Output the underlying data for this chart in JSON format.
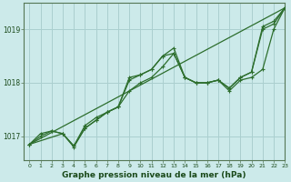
{
  "title": "Graphe pression niveau de la mer (hPa)",
  "bg_color": "#cceaea",
  "grid_color": "#aacfcf",
  "line_color": "#2d6e2d",
  "xlim": [
    -0.5,
    23
  ],
  "ylim": [
    1016.55,
    1019.5
  ],
  "yticks": [
    1017,
    1018,
    1019
  ],
  "xticks": [
    0,
    1,
    2,
    3,
    4,
    5,
    6,
    7,
    8,
    9,
    10,
    11,
    12,
    13,
    14,
    15,
    16,
    17,
    18,
    19,
    20,
    21,
    22,
    23
  ],
  "line1_x": [
    0,
    1,
    2,
    3,
    4,
    5,
    6,
    7,
    8,
    9,
    10,
    11,
    12,
    13,
    14,
    15,
    16,
    17,
    18,
    19,
    20,
    21,
    22,
    23
  ],
  "line1_y": [
    1016.85,
    1017.0,
    1017.1,
    1017.05,
    1016.8,
    1017.15,
    1017.3,
    1017.45,
    1017.55,
    1018.05,
    1018.15,
    1018.25,
    1018.5,
    1018.65,
    1018.1,
    1018.0,
    1018.0,
    1018.05,
    1017.9,
    1018.1,
    1018.2,
    1019.05,
    1019.15,
    1019.4
  ],
  "line2_x": [
    0,
    1,
    2,
    3,
    4,
    5,
    6,
    7,
    8,
    9,
    10,
    11,
    12,
    13,
    14,
    15,
    16,
    17,
    18,
    19,
    20,
    21,
    22,
    23
  ],
  "line2_y": [
    1016.85,
    1017.05,
    1017.1,
    1017.05,
    1016.82,
    1017.2,
    1017.35,
    1017.45,
    1017.55,
    1017.85,
    1018.0,
    1018.1,
    1018.3,
    1018.55,
    1018.1,
    1018.0,
    1018.0,
    1018.05,
    1017.9,
    1018.1,
    1018.2,
    1019.0,
    1019.1,
    1019.4
  ],
  "line3_x": [
    0,
    3,
    4,
    5,
    6,
    7,
    8,
    9,
    10,
    11,
    12,
    13,
    14,
    15,
    16,
    17,
    18,
    19,
    20,
    21,
    22,
    23
  ],
  "line3_y": [
    1016.85,
    1017.05,
    1016.82,
    1017.15,
    1017.3,
    1017.45,
    1017.55,
    1018.1,
    1018.15,
    1018.25,
    1018.5,
    1018.55,
    1018.1,
    1018.0,
    1018.0,
    1018.05,
    1017.85,
    1018.05,
    1018.1,
    1018.25,
    1019.0,
    1019.4
  ],
  "line4_x": [
    0,
    23
  ],
  "line4_y": [
    1016.85,
    1019.4
  ]
}
